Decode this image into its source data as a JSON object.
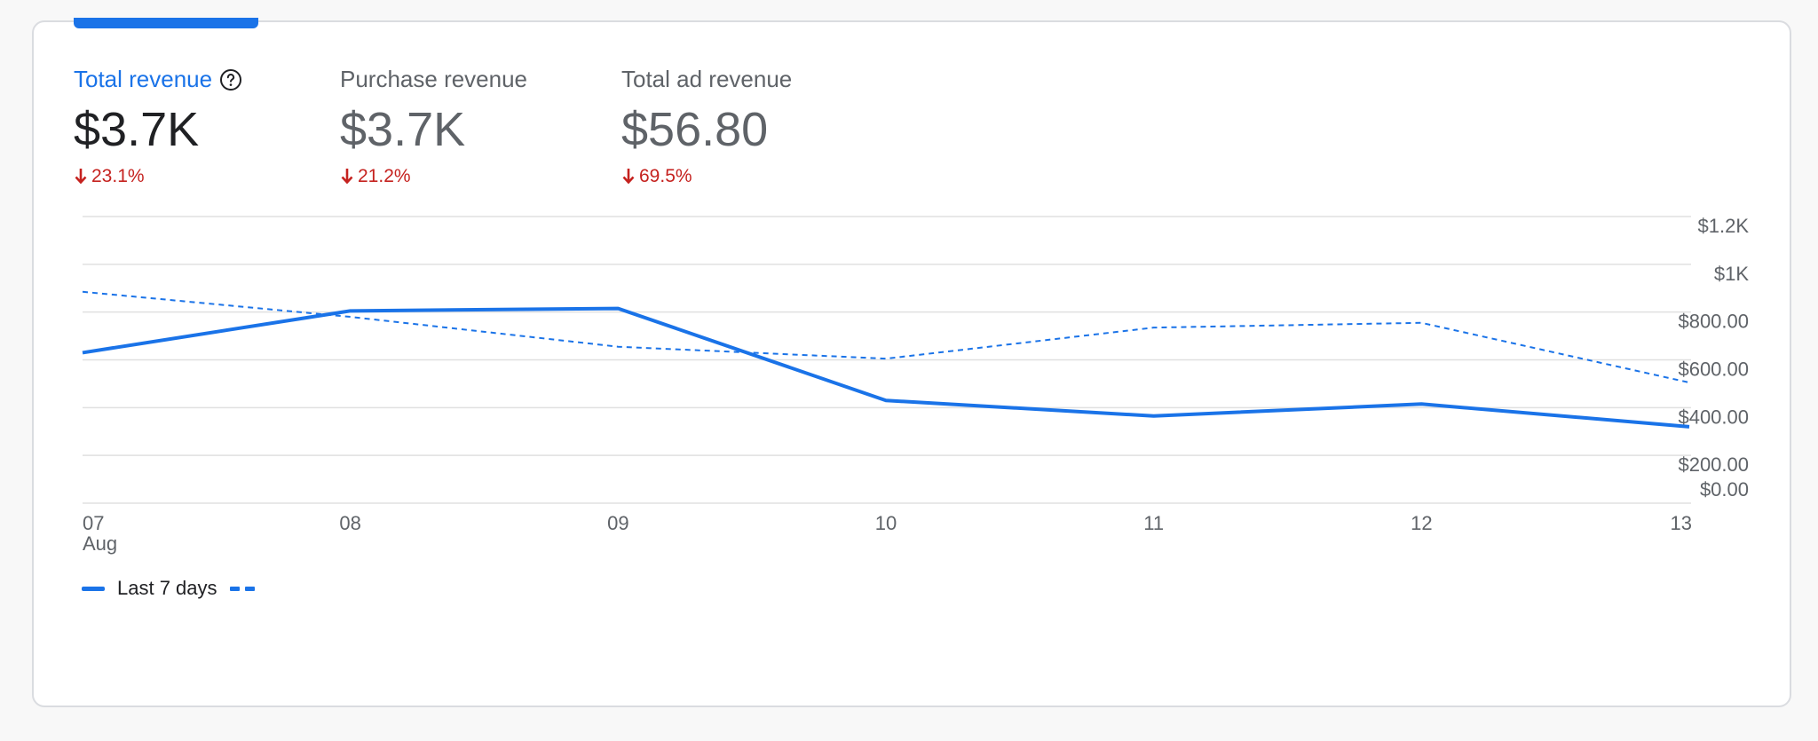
{
  "metrics": [
    {
      "label": "Total revenue",
      "value": "$3.7K",
      "delta": "23.1%",
      "active": true
    },
    {
      "label": "Purchase revenue",
      "value": "$3.7K",
      "delta": "21.2%",
      "active": false
    },
    {
      "label": "Total ad revenue",
      "value": "$56.80",
      "delta": "69.5%",
      "active": false
    }
  ],
  "colors": {
    "accent": "#1a73e8",
    "negative": "#c5221f",
    "grid": "#e0e0e0"
  },
  "legend": {
    "current_label": "Last 7 days",
    "previous_label": ""
  },
  "chart_data": {
    "type": "line",
    "x": [
      "07",
      "08",
      "09",
      "10",
      "11",
      "12",
      "13"
    ],
    "x_sub_labels": [
      "Aug",
      "",
      "",
      "",
      "",
      "",
      ""
    ],
    "y_ticks": [
      {
        "value": 1200,
        "label": "$1.2K"
      },
      {
        "value": 1000,
        "label": "$1K"
      },
      {
        "value": 800,
        "label": "$800.00"
      },
      {
        "value": 600,
        "label": "$600.00"
      },
      {
        "value": 400,
        "label": "$400.00"
      },
      {
        "value": 200,
        "label": "$200.00"
      },
      {
        "value": 0,
        "label": "$0.00"
      }
    ],
    "ylim": [
      0,
      1200
    ],
    "grid": true,
    "legend_position": "bottom-left",
    "series": [
      {
        "name": "Last 7 days",
        "style": "solid",
        "values": [
          630,
          805,
          815,
          430,
          365,
          415,
          320
        ]
      },
      {
        "name": "",
        "style": "dashed",
        "values": [
          885,
          780,
          655,
          605,
          735,
          755,
          505
        ]
      }
    ]
  }
}
